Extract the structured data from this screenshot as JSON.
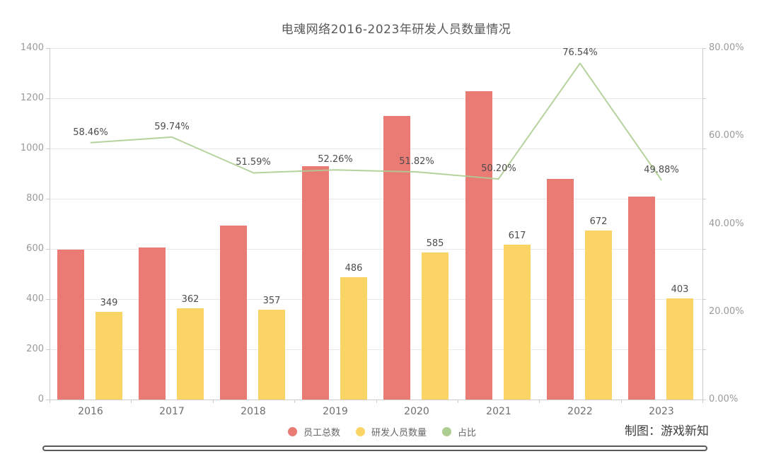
{
  "title": "电魂网络2016-2023年研发人员数量情况",
  "credit": "制图：游戏新知",
  "chart_data": {
    "type": "bar",
    "subtype": "grouped-bars-with-line-on-secondary-axis",
    "title": "电魂网络2016-2023年研发人员数量情况",
    "categories": [
      "2016",
      "2017",
      "2018",
      "2019",
      "2020",
      "2021",
      "2022",
      "2023"
    ],
    "series": [
      {
        "name": "员工总数",
        "type": "bar",
        "axis": "left",
        "color": "#E97A74",
        "values": [
          597,
          606,
          692,
          930,
          1129,
          1229,
          878,
          808
        ],
        "show_labels": false
      },
      {
        "name": "研发人员数量",
        "type": "bar",
        "axis": "left",
        "color": "#FAD464",
        "values": [
          349,
          362,
          357,
          486,
          585,
          617,
          672,
          403
        ],
        "labels": [
          "349",
          "362",
          "357",
          "486",
          "585",
          "617",
          "672",
          "403"
        ],
        "show_labels": true
      },
      {
        "name": "占比",
        "type": "line",
        "axis": "right",
        "color": "#AECD92",
        "values": [
          58.46,
          59.74,
          51.59,
          52.26,
          51.82,
          50.2,
          76.54,
          49.88
        ],
        "labels": [
          "58.46%",
          "59.74%",
          "51.59%",
          "52.26%",
          "51.82%",
          "50.20%",
          "76.54%",
          "49.88%"
        ],
        "show_labels": true
      }
    ],
    "left_axis": {
      "min": 0,
      "max": 1400,
      "step": 200,
      "tick_labels": [
        "0",
        "200",
        "400",
        "600",
        "800",
        "1000",
        "1200",
        "1400"
      ]
    },
    "right_axis": {
      "min": 0,
      "max": 80,
      "tick_labels": [
        "0.00%",
        "20.00%",
        "40.00%",
        "60.00%",
        "80.00%"
      ]
    },
    "grid": true,
    "legend_position": "bottom-center"
  },
  "colors": {
    "title_text": "#595959",
    "axis_tick_text": "#9a9a9a",
    "category_text": "#6e6e6e",
    "data_label_text": "#4d4d4d",
    "grid_line": "#e9e9e9",
    "axis_line": "#cccccc",
    "total_bar": "#E97A74",
    "rd_bar": "#FAD464",
    "ratio_line": "#AECD92"
  }
}
